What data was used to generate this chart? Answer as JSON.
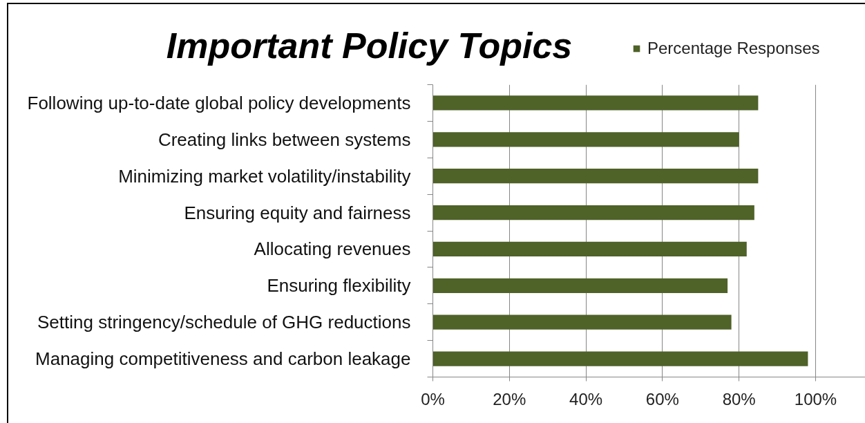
{
  "chart_data": {
    "type": "bar",
    "title": "Important Policy Topics",
    "orientation": "horizontal",
    "categories": [
      "Following up-to-date global policy developments",
      "Creating links between systems",
      "Minimizing market volatility/instability",
      "Ensuring equity and fairness",
      "Allocating revenues",
      "Ensuring flexibility",
      "Setting stringency/schedule of GHG reductions",
      "Managing competitiveness and carbon leakage"
    ],
    "series": [
      {
        "name": "Percentage Responses",
        "color": "#4f6228",
        "values": [
          85,
          80,
          85,
          84,
          82,
          77,
          78,
          98
        ]
      }
    ],
    "xlim": [
      0,
      113
    ],
    "xticks": [
      {
        "value": 0,
        "label": "0%"
      },
      {
        "value": 20,
        "label": "20%"
      },
      {
        "value": 40,
        "label": "40%"
      },
      {
        "value": 60,
        "label": "60%"
      },
      {
        "value": 80,
        "label": "80%"
      },
      {
        "value": 100,
        "label": "100%"
      }
    ],
    "grid": "x",
    "legend": "top right"
  }
}
